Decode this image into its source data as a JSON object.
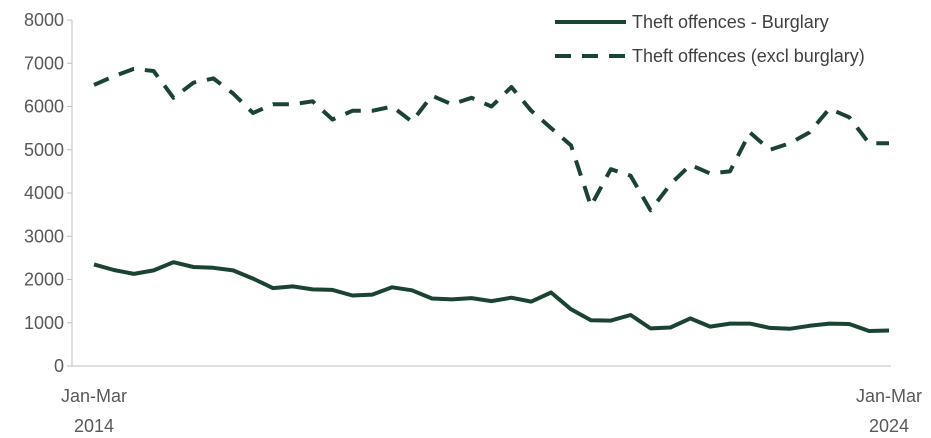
{
  "chart_data": {
    "type": "line",
    "title": "",
    "xlabel": "",
    "ylabel": "",
    "ylim": [
      0,
      8000
    ],
    "yticks": [
      0,
      1000,
      2000,
      3000,
      4000,
      5000,
      6000,
      7000,
      8000
    ],
    "grid": false,
    "legend_position": "top-right",
    "x_tick_labels": [
      {
        "index": 0,
        "line1": "Jan-Mar",
        "line2": "2014"
      },
      {
        "index": 40,
        "line1": "Jan-Mar",
        "line2": "2024"
      }
    ],
    "colors": {
      "burglary": "#1b4332",
      "excl": "#1b4332",
      "axis": "#bfbfbf"
    },
    "series": [
      {
        "name": "Theft offences - Burglary",
        "style": "solid",
        "values": [
          2350,
          2220,
          2130,
          2210,
          2400,
          2290,
          2270,
          2210,
          2020,
          1800,
          1840,
          1770,
          1760,
          1630,
          1650,
          1820,
          1750,
          1560,
          1540,
          1570,
          1500,
          1580,
          1490,
          1700,
          1310,
          1060,
          1050,
          1180,
          870,
          890,
          1100,
          910,
          980,
          980,
          880,
          860,
          930,
          980,
          970,
          810,
          820
        ]
      },
      {
        "name": "Theft offences (excl burglary)",
        "style": "dashed",
        "values": [
          6500,
          6700,
          6870,
          6820,
          6200,
          6550,
          6650,
          6300,
          5850,
          6050,
          6050,
          6120,
          5700,
          5900,
          5900,
          6000,
          5650,
          6250,
          6050,
          6200,
          6000,
          6450,
          5900,
          5500,
          5100,
          3700,
          4550,
          4400,
          3600,
          4200,
          4650,
          4450,
          4500,
          5400,
          5000,
          5150,
          5400,
          5950,
          5750,
          5150,
          5150
        ]
      }
    ]
  }
}
